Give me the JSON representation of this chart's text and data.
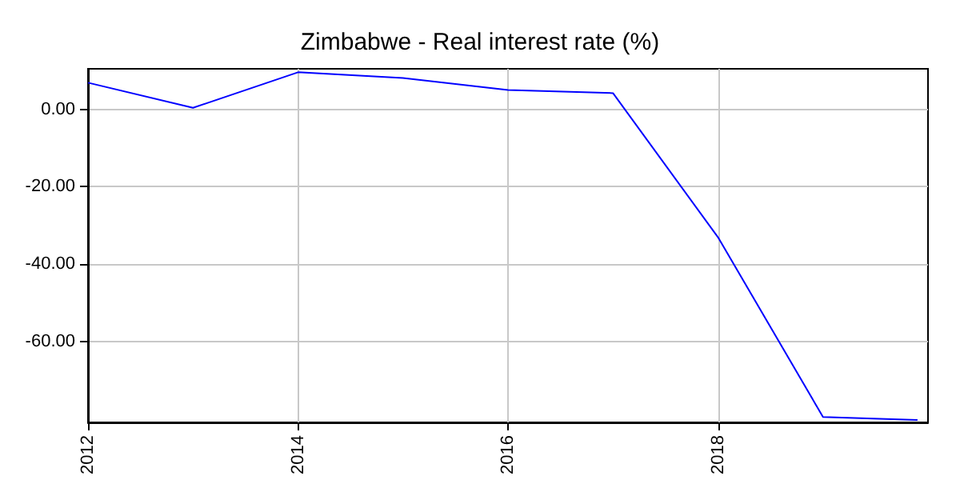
{
  "chart_data": {
    "type": "line",
    "title": "Zimbabwe - Real interest rate (%)",
    "x": [
      2012,
      2013,
      2014,
      2015,
      2016,
      2017,
      2018,
      2019,
      2019.9
    ],
    "series": [
      {
        "color": "#0000ff",
        "values": [
          6.9,
          0.4,
          9.6,
          8.1,
          5.0,
          4.2,
          -33.1,
          -79.6,
          -80.4
        ]
      }
    ],
    "xlim": [
      2012,
      2020
    ],
    "xticks": [
      2012,
      2014,
      2016,
      2018
    ],
    "ylim": [
      -81,
      10.5
    ],
    "yticks": [
      {
        "value": 0,
        "label": "0.00"
      },
      {
        "value": -20,
        "label": "-20.00"
      },
      {
        "value": -40,
        "label": "-40.00"
      },
      {
        "value": -60,
        "label": "-60.00"
      }
    ],
    "grid": true,
    "marker": "none",
    "line_style": "solid"
  }
}
